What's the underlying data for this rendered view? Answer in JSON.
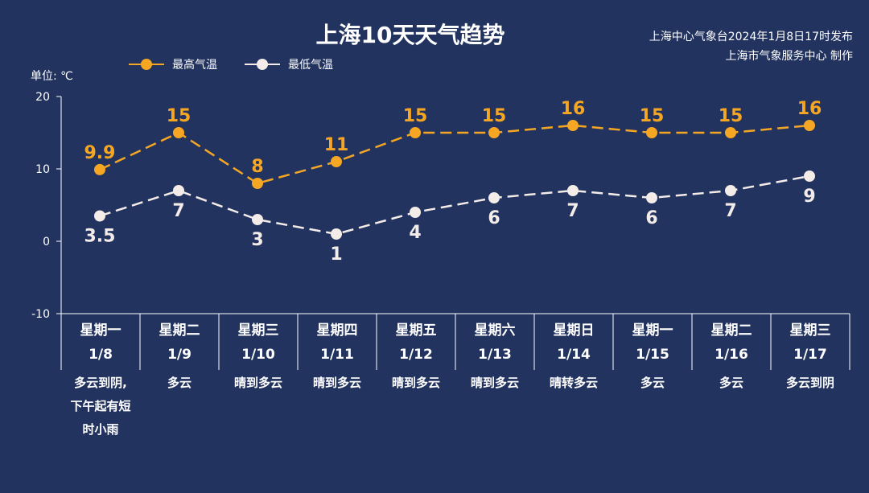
{
  "header": {
    "title": "上海10天天气趋势",
    "source_line1": "上海中心气象台2024年1月8日17时发布",
    "source_line2": "上海市气象服务中心 制作"
  },
  "unit_label": "单位: ℃",
  "colors": {
    "background": "#223360",
    "high": "#f5a623",
    "low": "#f3ece8",
    "axis": "#ffffff"
  },
  "chart_data": {
    "type": "line",
    "title": "上海10天天气趋势",
    "ylabel": "单位: ℃",
    "ylim": [
      -10,
      20
    ],
    "yticks": [
      -10,
      0,
      10,
      20
    ],
    "grid": false,
    "legend_position": "top-left",
    "categories": [
      "星期一 1/8",
      "星期二 1/9",
      "星期三 1/10",
      "星期四 1/11",
      "星期五 1/12",
      "星期六 1/13",
      "星期日 1/14",
      "星期一 1/15",
      "星期二 1/16",
      "星期三 1/17"
    ],
    "series": [
      {
        "name": "最高气温",
        "values": [
          9.9,
          15,
          8,
          11,
          15,
          15,
          16,
          15,
          15,
          16
        ]
      },
      {
        "name": "最低气温",
        "values": [
          3.5,
          7,
          3,
          1,
          4,
          6,
          7,
          6,
          7,
          9
        ]
      }
    ],
    "days": [
      {
        "weekday": "星期一",
        "date": "1/8",
        "weather": "多云到阴,\n下午起有短\n时小雨"
      },
      {
        "weekday": "星期二",
        "date": "1/9",
        "weather": "多云"
      },
      {
        "weekday": "星期三",
        "date": "1/10",
        "weather": "晴到多云"
      },
      {
        "weekday": "星期四",
        "date": "1/11",
        "weather": "晴到多云"
      },
      {
        "weekday": "星期五",
        "date": "1/12",
        "weather": "晴到多云"
      },
      {
        "weekday": "星期六",
        "date": "1/13",
        "weather": "晴到多云"
      },
      {
        "weekday": "星期日",
        "date": "1/14",
        "weather": "晴转多云"
      },
      {
        "weekday": "星期一",
        "date": "1/15",
        "weather": "多云"
      },
      {
        "weekday": "星期二",
        "date": "1/16",
        "weather": "多云"
      },
      {
        "weekday": "星期三",
        "date": "1/17",
        "weather": "多云到阴"
      }
    ]
  }
}
